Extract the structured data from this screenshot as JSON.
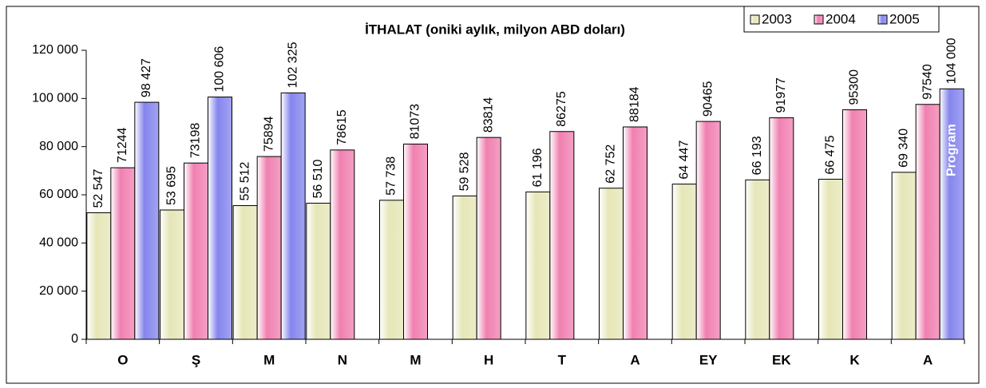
{
  "chart_data": {
    "type": "bar",
    "title": "İTHALAT (oniki aylık, milyon ABD doları)",
    "categories": [
      "O",
      "Ş",
      "M",
      "N",
      "M",
      "H",
      "T",
      "A",
      "EY",
      "EK",
      "K",
      "A"
    ],
    "series": [
      {
        "name": "2003",
        "color": "#e6e6b8",
        "values": [
          52547,
          53695,
          55512,
          56510,
          57738,
          59528,
          61196,
          62752,
          64447,
          66193,
          66475,
          69340
        ],
        "value_labels": [
          "52 547",
          "53 695",
          "55 512",
          "56 510",
          "57 738",
          "59 528",
          "61 196",
          "62 752",
          "64 447",
          "66 193",
          "66 475",
          "69 340"
        ]
      },
      {
        "name": "2004",
        "color": "#f080b0",
        "values": [
          71244,
          73198,
          75894,
          78615,
          81073,
          83814,
          86275,
          88184,
          90465,
          91977,
          95300,
          97540
        ]
      },
      {
        "name": "2005",
        "color": "#8585ee",
        "values": [
          98427,
          100606,
          102325,
          null,
          null,
          null,
          null,
          null,
          null,
          null,
          null,
          104000
        ],
        "value_labels": [
          "98 427",
          "100 606",
          "102 325",
          null,
          null,
          null,
          null,
          null,
          null,
          null,
          null,
          "104 000"
        ]
      }
    ],
    "annotation": "Program",
    "ylim": [
      0,
      120000
    ],
    "yticks": [
      0,
      {
        "value": 20000,
        "label": "20 000"
      },
      {
        "value": 40000,
        "label": "40 000"
      },
      {
        "value": 60000,
        "label": "60 000"
      },
      {
        "value": 80000,
        "label": "80 000"
      },
      {
        "value": 100000,
        "label": "100 000"
      },
      {
        "value": 120000,
        "label": "120 000"
      }
    ],
    "grid": false,
    "legend": "top-right"
  }
}
